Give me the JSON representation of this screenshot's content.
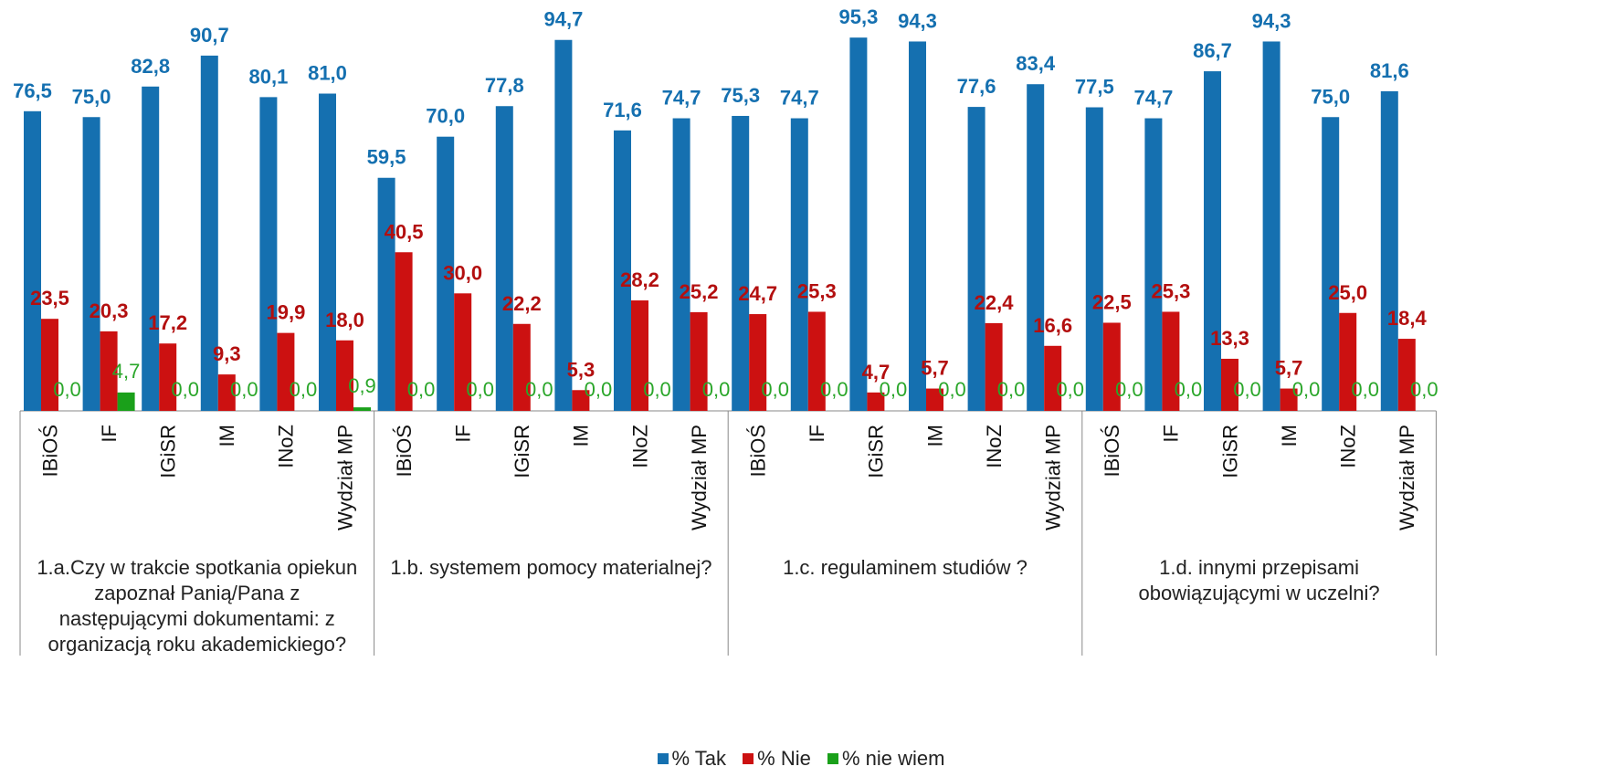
{
  "chart_data": {
    "type": "bar",
    "ylim": [
      0,
      100
    ],
    "grid": false,
    "legend_position": "bottom",
    "groups": [
      {
        "label": "1.a.Czy w trakcie spotkania opiekun zapoznał Panią/Pana z następującymi dokumentami: z organizacją roku akademickiego?",
        "categories": [
          "IBiOŚ",
          "IF",
          "IGiSR",
          "IM",
          "INoZ",
          "Wydział MP"
        ],
        "series": [
          {
            "name": "% Tak",
            "values": [
              76.5,
              75.0,
              82.8,
              90.7,
              80.1,
              81.0
            ]
          },
          {
            "name": "% Nie",
            "values": [
              23.5,
              20.3,
              17.2,
              9.3,
              19.9,
              18.0
            ]
          },
          {
            "name": "% nie wiem",
            "values": [
              0.0,
              4.7,
              0.0,
              0.0,
              0.0,
              0.9
            ]
          }
        ]
      },
      {
        "label": "1.b.  systemem pomocy materialnej?",
        "categories": [
          "IBiOŚ",
          "IF",
          "IGiSR",
          "IM",
          "INoZ",
          "Wydział MP"
        ],
        "series": [
          {
            "name": "% Tak",
            "values": [
              59.5,
              70.0,
              77.8,
              94.7,
              71.6,
              74.7
            ]
          },
          {
            "name": "% Nie",
            "values": [
              40.5,
              30.0,
              22.2,
              5.3,
              28.2,
              25.2
            ]
          },
          {
            "name": "% nie wiem",
            "values": [
              0.0,
              0.0,
              0.0,
              0.0,
              0.0,
              0.0
            ]
          }
        ]
      },
      {
        "label": "1.c.   regulaminem studiów ?",
        "categories": [
          "IBiOŚ",
          "IF",
          "IGiSR",
          "IM",
          "INoZ",
          "Wydział MP"
        ],
        "series": [
          {
            "name": "% Tak",
            "values": [
              75.3,
              74.7,
              95.3,
              94.3,
              77.6,
              83.4
            ]
          },
          {
            "name": "% Nie",
            "values": [
              24.7,
              25.3,
              4.7,
              5.7,
              22.4,
              16.6
            ]
          },
          {
            "name": "% nie wiem",
            "values": [
              0.0,
              0.0,
              0.0,
              0.0,
              0.0,
              0.0
            ]
          }
        ]
      },
      {
        "label": "1.d.  innymi przepisami obowiązującymi w uczelni?",
        "categories": [
          "IBiOŚ",
          "IF",
          "IGiSR",
          "IM",
          "INoZ",
          "Wydział MP"
        ],
        "series": [
          {
            "name": "% Tak",
            "values": [
              77.5,
              74.7,
              86.7,
              94.3,
              75.0,
              81.6
            ]
          },
          {
            "name": "% Nie",
            "values": [
              22.5,
              25.3,
              13.3,
              5.7,
              25.0,
              18.4
            ]
          },
          {
            "name": "% nie wiem",
            "values": [
              0.0,
              0.0,
              0.0,
              0.0,
              0.0,
              0.0
            ]
          }
        ]
      }
    ],
    "legend": [
      "% Tak",
      "% Nie",
      "% nie wiem"
    ],
    "colors": {
      "tak": "#1570b0",
      "nie": "#cc1111",
      "nie_wiem": "#1aa01a",
      "tak_label": "#1570b0",
      "nie_label": "#b30f0f",
      "nie_wiem_label": "#2aa62a"
    }
  }
}
